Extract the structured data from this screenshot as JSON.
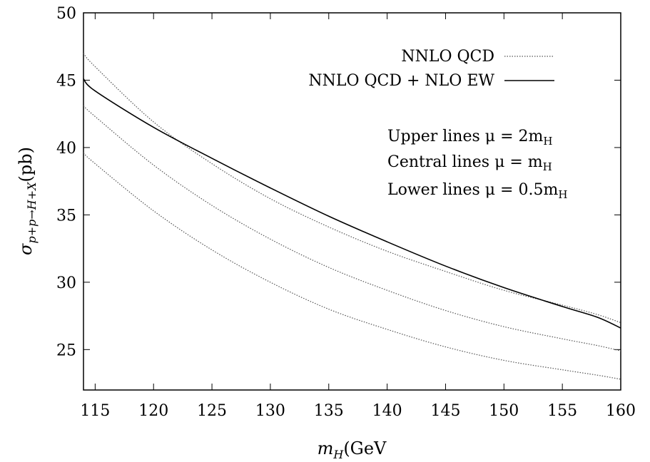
{
  "chart_data": {
    "type": "line",
    "title": "",
    "xlabel": "m_H(GeV",
    "ylabel": "σ_{p+p→H+X}(pb)",
    "xlim": [
      114,
      160
    ],
    "ylim": [
      22,
      50
    ],
    "x_ticks": [
      115,
      120,
      125,
      130,
      135,
      140,
      145,
      150,
      155,
      160
    ],
    "y_ticks": [
      25,
      30,
      35,
      40,
      45,
      50
    ],
    "grid": false,
    "legend_placement": "top-right",
    "x": [
      114,
      115,
      120,
      125,
      130,
      135,
      140,
      145,
      150,
      155,
      158,
      160
    ],
    "series": [
      {
        "name": "NNLO QCD",
        "style": "dotted",
        "values": [
          47.0,
          46.0,
          41.9,
          38.8,
          36.2,
          34.1,
          32.3,
          30.8,
          29.4,
          28.3,
          27.6,
          27.0
        ]
      },
      {
        "name": "NNLO QCD + NLO EW",
        "style": "solid",
        "values": [
          45.1,
          44.2,
          41.5,
          39.2,
          37.0,
          34.9,
          33.0,
          31.2,
          29.6,
          28.2,
          27.4,
          26.6
        ]
      },
      {
        "name": "",
        "style": "dotted",
        "values": [
          43.1,
          42.3,
          38.7,
          35.7,
          33.2,
          31.1,
          29.4,
          27.9,
          26.7,
          25.8,
          25.3,
          24.9
        ]
      },
      {
        "name": "",
        "style": "dotted",
        "values": [
          39.6,
          38.8,
          35.3,
          32.4,
          30.0,
          28.0,
          26.5,
          25.2,
          24.2,
          23.5,
          23.1,
          22.8
        ]
      }
    ],
    "annotations": {
      "upper_lines": "Upper lines μ = 2m",
      "central_lines": "Central lines μ = m",
      "lower_lines": "Lower lines μ = 0.5m",
      "subscript": "H"
    },
    "colors": {
      "line": "#000000",
      "dotted_line": "#555555",
      "frame": "#000000",
      "background": "#ffffff"
    }
  }
}
